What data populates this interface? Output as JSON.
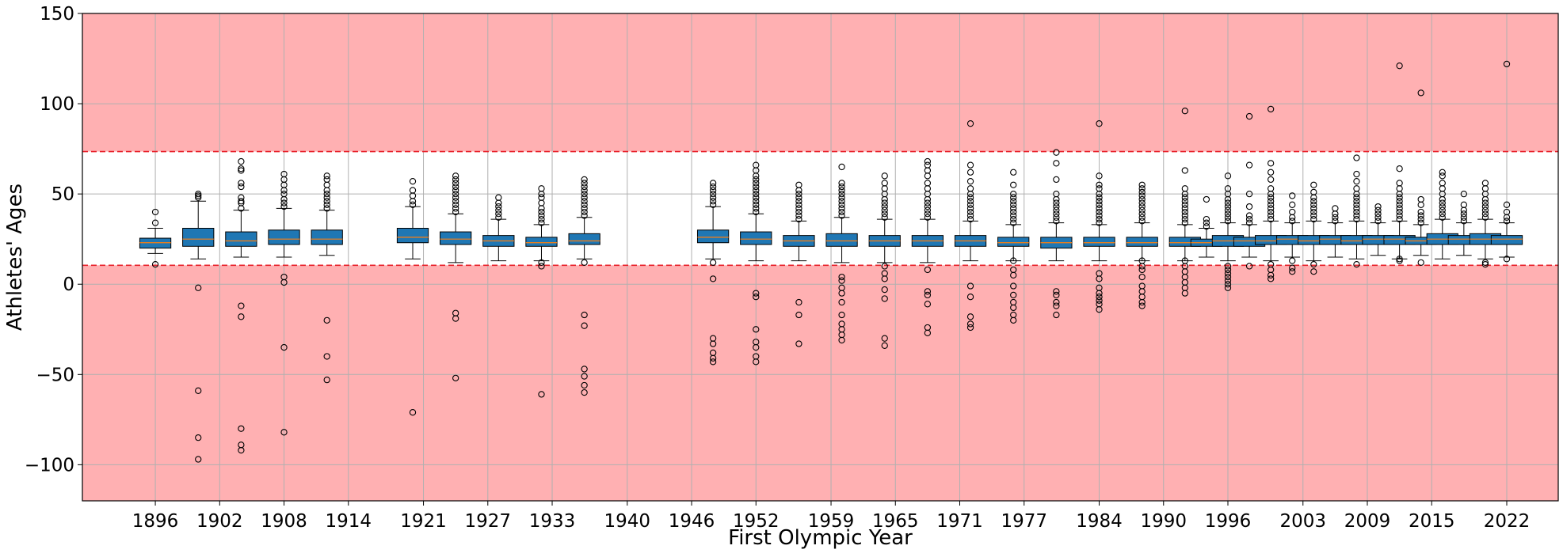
{
  "chart_data": {
    "type": "box",
    "title": "",
    "xlabel": "First Olympic Year",
    "ylabel": "Athletes' Ages",
    "ylim": [
      -120,
      150
    ],
    "xlim": [
      1889.2,
      2026.8
    ],
    "yticks": [
      -100,
      -50,
      0,
      50,
      100,
      150
    ],
    "xticks": [
      1896,
      1902,
      1908,
      1914,
      1921,
      1927,
      1933,
      1940,
      1946,
      1952,
      1959,
      1965,
      1971,
      1977,
      1984,
      1990,
      1996,
      2003,
      2009,
      2015,
      2022
    ],
    "grid": true,
    "outlier_band": {
      "lower": 10.5,
      "upper": 73.5,
      "band_color": "#ffb0b2",
      "line_color": "#e8202a"
    },
    "box_color": "#1f77b4",
    "median_color": "#ff7f0e",
    "boxes": [
      {
        "year": 1896,
        "q1": 20,
        "median": 23,
        "q3": 25.5,
        "whisker_low": 17,
        "whisker_high": 31,
        "outliers": [
          34,
          40,
          11
        ]
      },
      {
        "year": 1900,
        "q1": 21,
        "median": 25,
        "q3": 31,
        "whisker_low": 14,
        "whisker_high": 46,
        "outliers": [
          48,
          49,
          50,
          -2,
          -59,
          -85,
          -97
        ]
      },
      {
        "year": 1904,
        "q1": 21,
        "median": 24,
        "q3": 29,
        "whisker_low": 15,
        "whisker_high": 41,
        "outliers": [
          42,
          45,
          46,
          48,
          54,
          56,
          63,
          64,
          68,
          -12,
          -18,
          -80,
          -89,
          -92
        ]
      },
      {
        "year": 1908,
        "q1": 22,
        "median": 25,
        "q3": 30,
        "whisker_low": 15,
        "whisker_high": 42,
        "outliers": [
          43,
          45,
          47,
          50,
          52,
          55,
          58,
          61,
          4,
          1,
          -35,
          -82
        ]
      },
      {
        "year": 1912,
        "q1": 22,
        "median": 25,
        "q3": 30,
        "whisker_low": 16,
        "whisker_high": 41,
        "outliers": [
          42,
          44,
          46,
          48,
          50,
          52,
          55,
          58,
          60,
          -20,
          -40,
          -53
        ]
      },
      {
        "year": 1920,
        "q1": 23,
        "median": 26,
        "q3": 31,
        "whisker_low": 14,
        "whisker_high": 43,
        "outliers": [
          44,
          46,
          49,
          52,
          57,
          -71
        ]
      },
      {
        "year": 1924,
        "q1": 22,
        "median": 25,
        "q3": 29,
        "whisker_low": 12,
        "whisker_high": 39,
        "outliers": [
          40,
          42,
          44,
          46,
          48,
          50,
          52,
          54,
          56,
          58,
          60,
          -16,
          -19,
          -52
        ]
      },
      {
        "year": 1928,
        "q1": 21,
        "median": 24,
        "q3": 27,
        "whisker_low": 13,
        "whisker_high": 36,
        "outliers": [
          37,
          39,
          41,
          43,
          45,
          48
        ]
      },
      {
        "year": 1932,
        "q1": 21,
        "median": 23,
        "q3": 26,
        "whisker_low": 13,
        "whisker_high": 33,
        "outliers": [
          34,
          36,
          38,
          40,
          42,
          45,
          48,
          50,
          53,
          12,
          10,
          -61
        ]
      },
      {
        "year": 1936,
        "q1": 22,
        "median": 24,
        "q3": 28,
        "whisker_low": 14,
        "whisker_high": 37,
        "outliers": [
          38,
          40,
          42,
          44,
          46,
          48,
          50,
          52,
          54,
          56,
          58,
          12,
          -17,
          -23,
          -47,
          -51,
          -56,
          -60
        ]
      },
      {
        "year": 1948,
        "q1": 23,
        "median": 26,
        "q3": 30,
        "whisker_low": 14,
        "whisker_high": 43,
        "outliers": [
          44,
          46,
          48,
          50,
          52,
          54,
          56,
          12,
          3,
          -30,
          -33,
          -38,
          -41,
          -43
        ]
      },
      {
        "year": 1952,
        "q1": 22,
        "median": 25,
        "q3": 29,
        "whisker_low": 13,
        "whisker_high": 39,
        "outliers": [
          40,
          42,
          44,
          46,
          48,
          50,
          52,
          54,
          56,
          58,
          60,
          63,
          66,
          -5,
          -7,
          -25,
          -32,
          -35,
          -40,
          -43
        ]
      },
      {
        "year": 1956,
        "q1": 21,
        "median": 24,
        "q3": 27,
        "whisker_low": 13,
        "whisker_high": 35,
        "outliers": [
          36,
          38,
          40,
          42,
          44,
          46,
          48,
          50,
          52,
          55,
          -10,
          -17,
          -33
        ]
      },
      {
        "year": 1960,
        "q1": 21,
        "median": 24,
        "q3": 28,
        "whisker_low": 12,
        "whisker_high": 37,
        "outliers": [
          38,
          40,
          42,
          44,
          46,
          48,
          50,
          52,
          54,
          56,
          65,
          4,
          2,
          -2,
          -5,
          -10,
          -17,
          -22,
          -25,
          -28,
          -31
        ]
      },
      {
        "year": 1964,
        "q1": 21,
        "median": 24,
        "q3": 27,
        "whisker_low": 12,
        "whisker_high": 36,
        "outliers": [
          37,
          39,
          41,
          43,
          45,
          47,
          50,
          53,
          56,
          60,
          10,
          6,
          3,
          -3,
          -8,
          -30,
          -34
        ]
      },
      {
        "year": 1968,
        "q1": 21,
        "median": 24,
        "q3": 27,
        "whisker_low": 12,
        "whisker_high": 36,
        "outliers": [
          37,
          39,
          41,
          43,
          45,
          47,
          50,
          53,
          56,
          60,
          63,
          66,
          68,
          8,
          -4,
          -6,
          -11,
          -24,
          -27
        ]
      },
      {
        "year": 1972,
        "q1": 21,
        "median": 24,
        "q3": 27,
        "whisker_low": 13,
        "whisker_high": 35,
        "outliers": [
          36,
          38,
          40,
          42,
          44,
          46,
          48,
          50,
          53,
          57,
          62,
          66,
          89,
          -1,
          -7,
          -18,
          -22,
          -24
        ]
      },
      {
        "year": 1976,
        "q1": 21,
        "median": 23,
        "q3": 26,
        "whisker_low": 13,
        "whisker_high": 33,
        "outliers": [
          34,
          36,
          38,
          40,
          42,
          44,
          46,
          48,
          50,
          55,
          62,
          13,
          8,
          5,
          -1,
          -6,
          -10,
          -13,
          -17,
          -20
        ]
      },
      {
        "year": 1980,
        "q1": 20,
        "median": 23,
        "q3": 26,
        "whisker_low": 13,
        "whisker_high": 34,
        "outliers": [
          35,
          37,
          39,
          41,
          43,
          45,
          47,
          50,
          58,
          67,
          73,
          -4,
          -6,
          -10,
          -12,
          -17
        ]
      },
      {
        "year": 1984,
        "q1": 21,
        "median": 23,
        "q3": 26,
        "whisker_low": 13,
        "whisker_high": 33,
        "outliers": [
          34,
          36,
          38,
          40,
          42,
          44,
          46,
          48,
          50,
          53,
          55,
          60,
          89,
          6,
          3,
          -2,
          -5,
          -7,
          -9,
          -11,
          -14
        ]
      },
      {
        "year": 1988,
        "q1": 21,
        "median": 23,
        "q3": 26,
        "whisker_low": 13,
        "whisker_high": 34,
        "outliers": [
          35,
          37,
          39,
          41,
          43,
          45,
          47,
          49,
          51,
          53,
          55,
          13,
          10,
          8,
          4,
          -1,
          -4,
          -7,
          -10,
          -12
        ]
      },
      {
        "year": 1992,
        "q1": 21,
        "median": 23,
        "q3": 26,
        "whisker_low": 13,
        "whisker_high": 33,
        "outliers": [
          34,
          36,
          38,
          40,
          42,
          44,
          46,
          48,
          50,
          53,
          63,
          96,
          13,
          10,
          7,
          4,
          1,
          -2,
          -5
        ]
      },
      {
        "year": 1994,
        "q1": 21,
        "median": 23,
        "q3": 25,
        "whisker_low": 15,
        "whisker_high": 31,
        "outliers": [
          32,
          34,
          36,
          47
        ]
      },
      {
        "year": 1996,
        "q1": 21,
        "median": 24,
        "q3": 27,
        "whisker_low": 13,
        "whisker_high": 34,
        "outliers": [
          35,
          37,
          39,
          41,
          43,
          45,
          47,
          50,
          53,
          60,
          10,
          8,
          6,
          4,
          2,
          0,
          -2
        ]
      },
      {
        "year": 1998,
        "q1": 21,
        "median": 24,
        "q3": 26,
        "whisker_low": 15,
        "whisker_high": 33,
        "outliers": [
          34,
          36,
          38,
          43,
          50,
          66,
          93,
          10
        ]
      },
      {
        "year": 2000,
        "q1": 22,
        "median": 24,
        "q3": 27,
        "whisker_low": 13,
        "whisker_high": 35,
        "outliers": [
          36,
          38,
          40,
          42,
          44,
          46,
          48,
          50,
          53,
          58,
          62,
          67,
          97,
          11,
          8,
          5,
          3
        ]
      },
      {
        "year": 2002,
        "q1": 22,
        "median": 25,
        "q3": 27,
        "whisker_low": 15,
        "whisker_high": 34,
        "outliers": [
          35,
          37,
          40,
          44,
          49,
          13,
          9,
          7
        ]
      },
      {
        "year": 2004,
        "q1": 22,
        "median": 24,
        "q3": 27,
        "whisker_low": 13,
        "whisker_high": 35,
        "outliers": [
          36,
          38,
          40,
          42,
          44,
          46,
          48,
          51,
          55,
          11,
          7
        ]
      },
      {
        "year": 2006,
        "q1": 22,
        "median": 25,
        "q3": 27,
        "whisker_low": 15,
        "whisker_high": 34,
        "outliers": [
          35,
          37,
          39,
          42
        ]
      },
      {
        "year": 2008,
        "q1": 22,
        "median": 24,
        "q3": 27,
        "whisker_low": 14,
        "whisker_high": 35,
        "outliers": [
          36,
          38,
          40,
          42,
          44,
          46,
          48,
          50,
          53,
          57,
          61,
          70,
          11
        ]
      },
      {
        "year": 2010,
        "q1": 22,
        "median": 25,
        "q3": 27,
        "whisker_low": 16,
        "whisker_high": 34,
        "outliers": [
          35,
          37,
          39,
          41,
          43
        ]
      },
      {
        "year": 2012,
        "q1": 22,
        "median": 25,
        "q3": 27,
        "whisker_low": 14,
        "whisker_high": 35,
        "outliers": [
          36,
          38,
          40,
          42,
          44,
          46,
          48,
          50,
          53,
          56,
          64,
          121,
          14,
          13
        ]
      },
      {
        "year": 2014,
        "q1": 22,
        "median": 24,
        "q3": 26,
        "whisker_low": 16,
        "whisker_high": 33,
        "outliers": [
          34,
          36,
          38,
          40,
          44,
          47,
          106,
          12
        ]
      },
      {
        "year": 2016,
        "q1": 22,
        "median": 25,
        "q3": 28,
        "whisker_low": 14,
        "whisker_high": 36,
        "outliers": [
          37,
          39,
          41,
          43,
          45,
          47,
          50,
          53,
          56,
          60,
          62
        ]
      },
      {
        "year": 2018,
        "q1": 22,
        "median": 25,
        "q3": 27,
        "whisker_low": 16,
        "whisker_high": 34,
        "outliers": [
          35,
          37,
          39,
          41,
          44,
          50
        ]
      },
      {
        "year": 2020,
        "q1": 22,
        "median": 25,
        "q3": 28,
        "whisker_low": 14,
        "whisker_high": 36,
        "outliers": [
          37,
          39,
          41,
          43,
          45,
          47,
          50,
          53,
          56,
          12,
          11
        ]
      },
      {
        "year": 2022,
        "q1": 22,
        "median": 25,
        "q3": 27,
        "whisker_low": 15,
        "whisker_high": 34,
        "outliers": [
          35,
          37,
          40,
          44,
          122,
          14
        ]
      }
    ]
  }
}
